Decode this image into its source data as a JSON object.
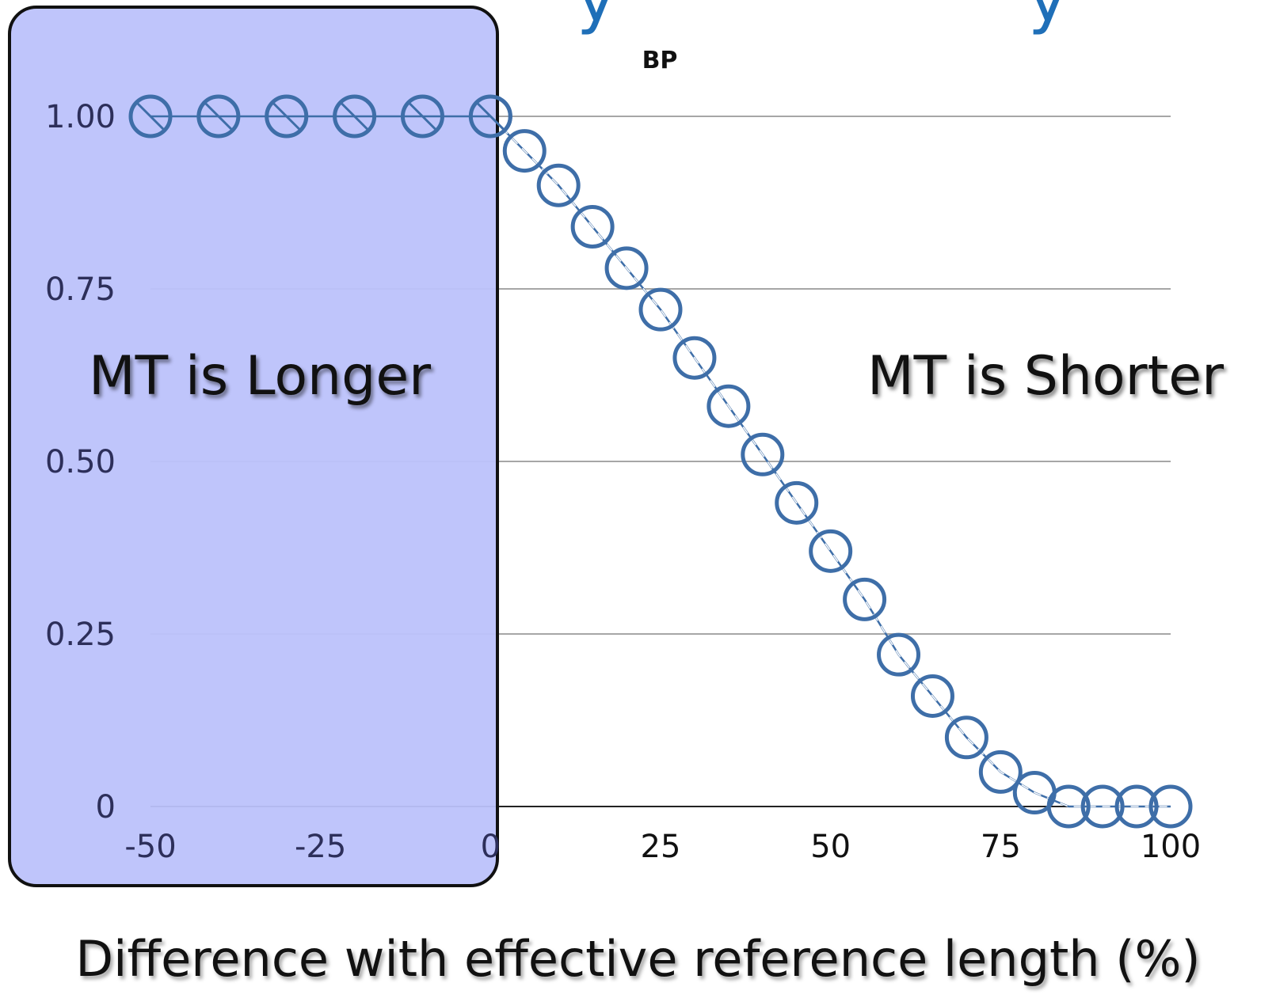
{
  "chart_data": {
    "type": "line",
    "title": "BP",
    "xlabel": "Difference with effective reference length (%)",
    "ylabel": "",
    "xlim": [
      -50,
      100
    ],
    "ylim": [
      0,
      1
    ],
    "x_ticks": [
      "-50",
      "-25",
      "0",
      "25",
      "50",
      "75",
      "100"
    ],
    "y_ticks": [
      "0",
      "0.25",
      "0.50",
      "0.75",
      "1.00"
    ],
    "grid": true,
    "series": [
      {
        "name": "",
        "marker": "open-circle",
        "line": "dashed",
        "color": "#3e6ea8",
        "x": [
          -50,
          -40,
          -30,
          -20,
          -10,
          0,
          5,
          10,
          15,
          20,
          25,
          30,
          35,
          40,
          45,
          50,
          55,
          60,
          65,
          70,
          75,
          80,
          85,
          90,
          95,
          100
        ],
        "y": [
          1.0,
          1.0,
          1.0,
          1.0,
          1.0,
          1.0,
          0.95,
          0.9,
          0.84,
          0.78,
          0.72,
          0.65,
          0.58,
          0.51,
          0.44,
          0.37,
          0.3,
          0.22,
          0.16,
          0.1,
          0.05,
          0.02,
          0.0,
          0.0,
          0.0,
          0.0
        ]
      }
    ],
    "annotations": {
      "left_region": "MT is Longer",
      "right_region": "MT is Shorter"
    },
    "highlight_color": "#bcc2fb"
  }
}
